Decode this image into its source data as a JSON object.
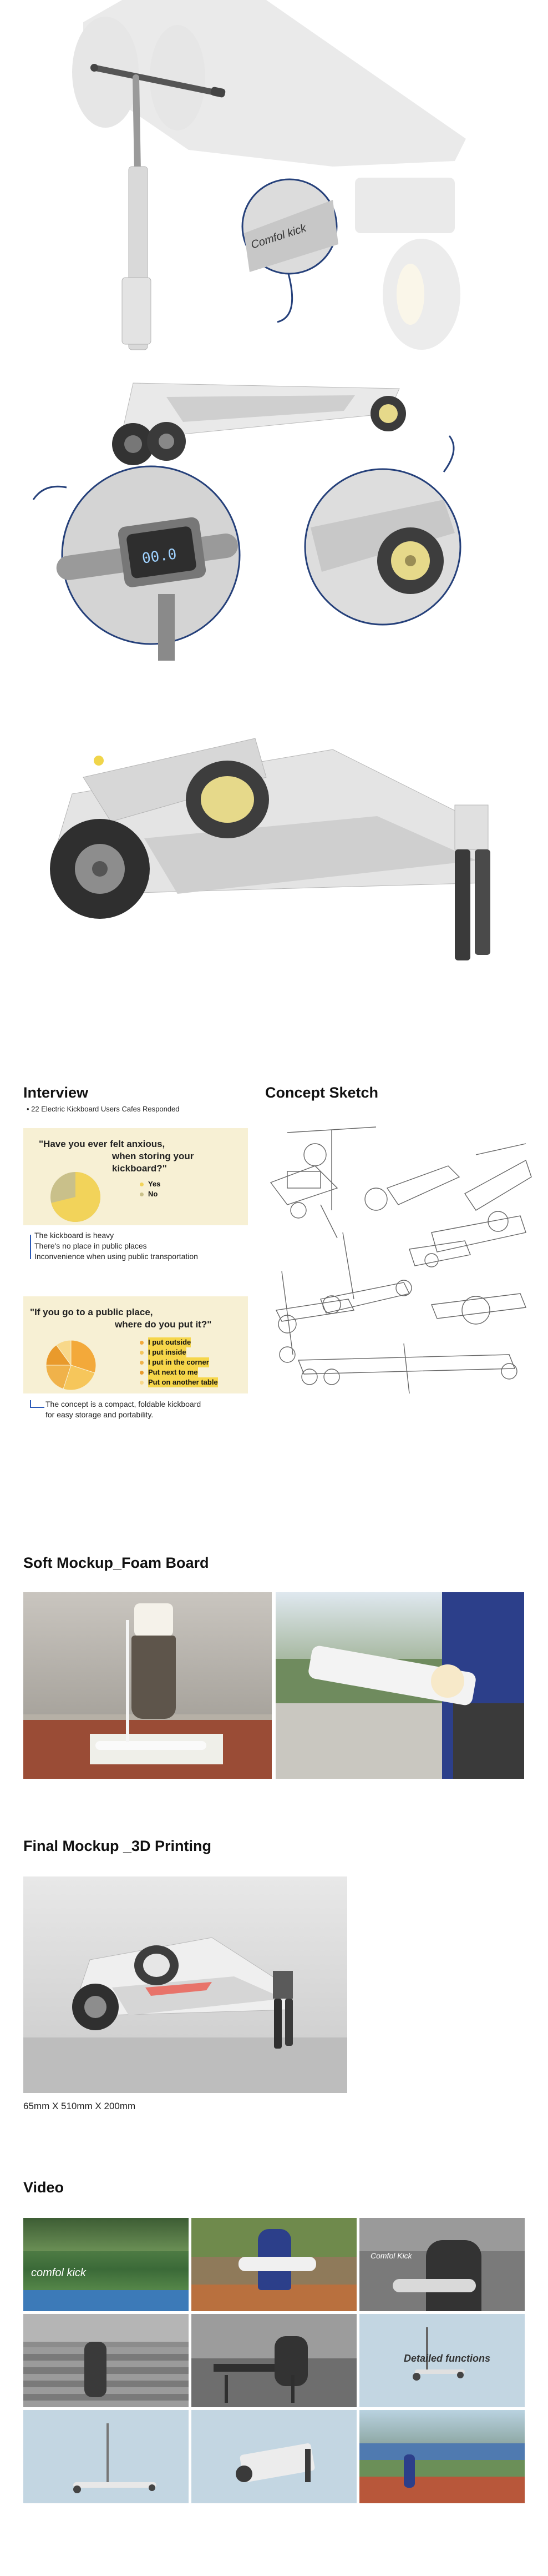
{
  "brand": "Comfol kick",
  "display_digits": "00.0",
  "interview": {
    "title": "Interview",
    "bullet": "22 Electric Kickboard Users Cafes Responded",
    "q1": {
      "line1": "\"Have you ever felt anxious,",
      "line2": "when storing your kickboard?\"",
      "legend": [
        "Yes",
        "No"
      ],
      "pie_values": [
        0.72,
        0.28
      ],
      "colors": [
        "#f2d35a",
        "#c9c08a"
      ]
    },
    "notes1": [
      "The kickboard is heavy",
      "There's no place in public places",
      "Inconvenience when using public transportation"
    ],
    "q2": {
      "line1": "\"If you go to a public place,",
      "line2": "where do you put it?\"",
      "legend": [
        "I put outside",
        "I put inside",
        "I put in the corner",
        "Put next to me",
        "Put on another table"
      ],
      "pie_values": [
        0.3,
        0.25,
        0.2,
        0.15,
        0.1
      ],
      "colors": [
        "#f3a93a",
        "#f6c65b",
        "#f0b24a",
        "#e99a2c",
        "#f8d88a"
      ]
    },
    "notes2_line1": "The concept is a compact, foldable kickboard",
    "notes2_line2": "for easy storage and portability."
  },
  "concept": {
    "title": "Concept Sketch"
  },
  "soft": {
    "title": "Soft Mockup_Foam Board"
  },
  "final": {
    "title": "Final Mockup _3D Printing",
    "dims": "65mm X 510mm X 200mm"
  },
  "video": {
    "title": "Video",
    "thumb1": "comfol kick",
    "thumb3": "Comfol Kick",
    "thumb6": "Detailed functions"
  }
}
